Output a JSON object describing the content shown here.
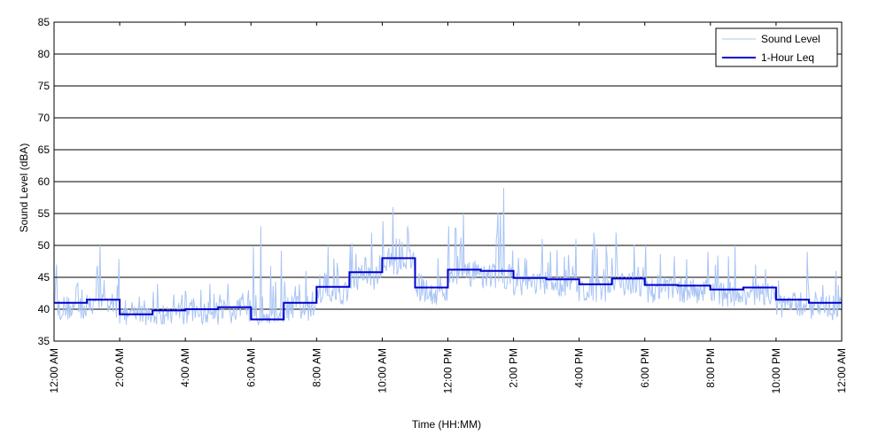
{
  "chart_data": {
    "type": "line",
    "xlabel": "Time (HH:MM)",
    "ylabel": "Sound Level (dBA)",
    "ylim": [
      35,
      85
    ],
    "yticks": [
      35,
      40,
      45,
      50,
      55,
      60,
      65,
      70,
      75,
      80,
      85
    ],
    "xlim_hours": [
      0,
      24
    ],
    "xtick_hours": [
      0,
      2,
      4,
      6,
      8,
      10,
      12,
      14,
      16,
      18,
      20,
      22,
      24
    ],
    "xtick_labels": [
      "12:00 AM",
      "2:00 AM",
      "4:00 AM",
      "6:00 AM",
      "8:00 AM",
      "10:00 AM",
      "12:00 PM",
      "2:00 PM",
      "4:00 PM",
      "6:00 PM",
      "8:00 PM",
      "10:00 PM",
      "12:00 AM"
    ],
    "grid": "horizontal",
    "legend_position": "top-right",
    "series": [
      {
        "name": "Sound Level",
        "color": "#a9c4f5",
        "values_hourly_peak_approx": [
          47,
          50,
          42,
          44,
          44,
          44,
          53,
          46,
          50,
          52,
          56,
          48,
          55,
          59,
          51,
          51,
          52,
          52,
          50,
          49,
          50,
          47,
          49,
          46
        ]
      },
      {
        "name": "1-Hour Leq",
        "color": "#0000cc",
        "values": [
          41.0,
          41.5,
          39.2,
          39.8,
          40.0,
          40.3,
          38.4,
          41.0,
          43.5,
          45.8,
          48.0,
          43.4,
          46.2,
          46.0,
          44.9,
          44.7,
          43.9,
          44.8,
          43.8,
          43.7,
          43.1,
          43.4,
          41.5,
          41.0
        ]
      }
    ]
  }
}
